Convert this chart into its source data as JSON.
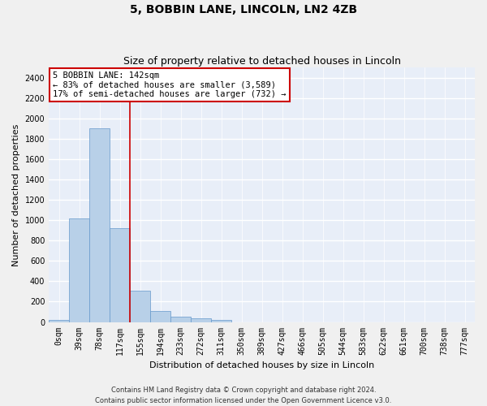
{
  "title": "5, BOBBIN LANE, LINCOLN, LN2 4ZB",
  "subtitle": "Size of property relative to detached houses in Lincoln",
  "xlabel": "Distribution of detached houses by size in Lincoln",
  "ylabel": "Number of detached properties",
  "categories": [
    "0sqm",
    "39sqm",
    "78sqm",
    "117sqm",
    "155sqm",
    "194sqm",
    "233sqm",
    "272sqm",
    "311sqm",
    "350sqm",
    "389sqm",
    "427sqm",
    "466sqm",
    "505sqm",
    "544sqm",
    "583sqm",
    "622sqm",
    "661sqm",
    "700sqm",
    "738sqm",
    "777sqm"
  ],
  "values": [
    20,
    1020,
    1900,
    920,
    310,
    105,
    55,
    35,
    20,
    0,
    0,
    0,
    0,
    0,
    0,
    0,
    0,
    0,
    0,
    0,
    0
  ],
  "bar_color": "#b8d0e8",
  "bar_edge_color": "#6699cc",
  "annotation_line1": "5 BOBBIN LANE: 142sqm",
  "annotation_line2": "← 83% of detached houses are smaller (3,589)",
  "annotation_line3": "17% of semi-detached houses are larger (732) →",
  "red_line_x": 3.5,
  "ylim": [
    0,
    2500
  ],
  "yticks": [
    0,
    200,
    400,
    600,
    800,
    1000,
    1200,
    1400,
    1600,
    1800,
    2000,
    2200,
    2400
  ],
  "background_color": "#e8eef8",
  "grid_color": "#ffffff",
  "fig_background": "#f0f0f0",
  "footer_line1": "Contains HM Land Registry data © Crown copyright and database right 2024.",
  "footer_line2": "Contains public sector information licensed under the Open Government Licence v3.0.",
  "annotation_box_color": "#ffffff",
  "annotation_box_edge": "#cc0000",
  "red_line_color": "#cc0000",
  "title_fontsize": 10,
  "subtitle_fontsize": 9,
  "axis_label_fontsize": 8,
  "tick_fontsize": 7,
  "annotation_fontsize": 7.5,
  "footer_fontsize": 6
}
